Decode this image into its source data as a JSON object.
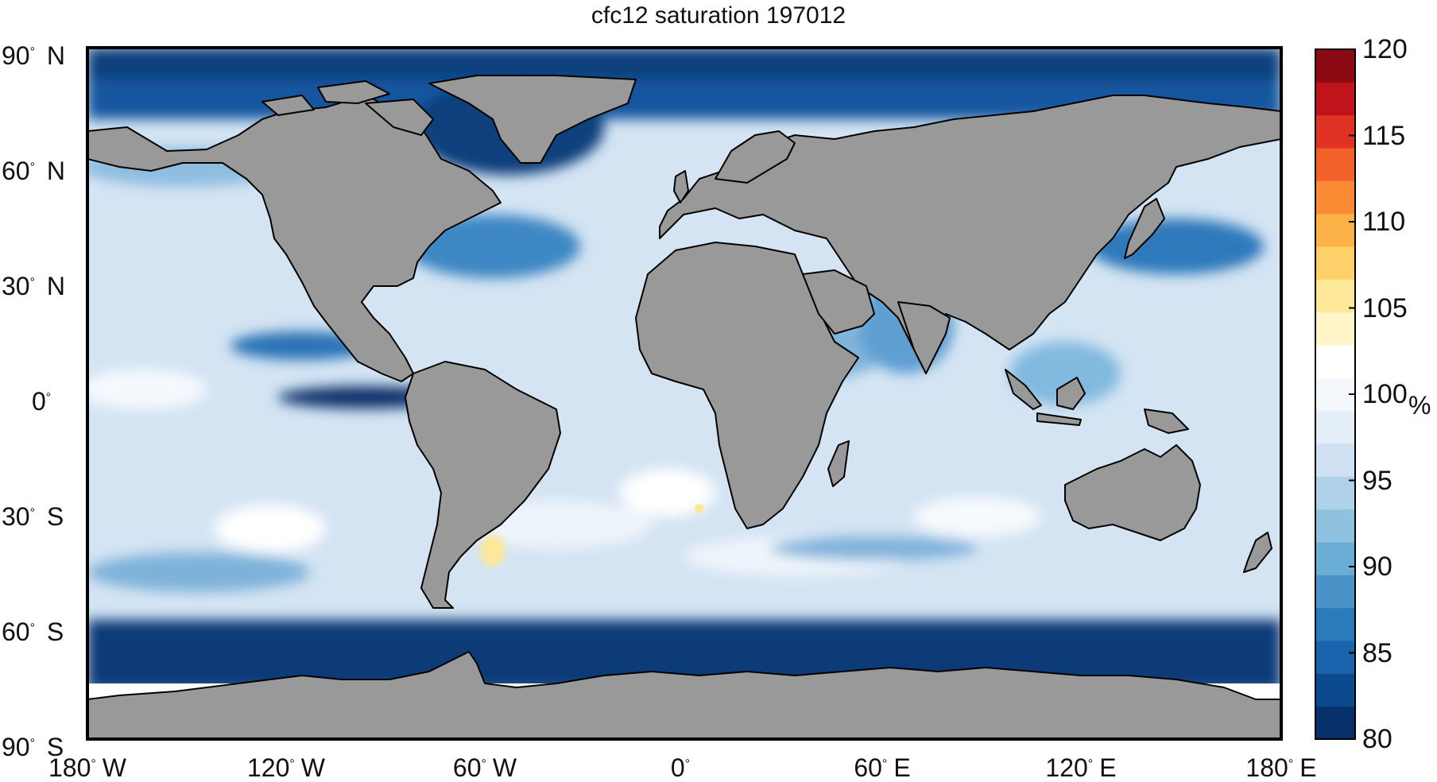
{
  "title": "cfc12 saturation 197012",
  "axes": {
    "lat_labels": [
      {
        "deg": "90",
        "hemi": "N"
      },
      {
        "deg": "60",
        "hemi": "N"
      },
      {
        "deg": "30",
        "hemi": "N"
      },
      {
        "deg": "0",
        "hemi": ""
      },
      {
        "deg": "30",
        "hemi": "S"
      },
      {
        "deg": "60",
        "hemi": "S"
      },
      {
        "deg": "90",
        "hemi": "S"
      }
    ],
    "lon_labels": [
      {
        "deg": "180",
        "hemi": "W"
      },
      {
        "deg": "120",
        "hemi": "W"
      },
      {
        "deg": "60",
        "hemi": "W"
      },
      {
        "deg": "0",
        "hemi": ""
      },
      {
        "deg": "60",
        "hemi": "E"
      },
      {
        "deg": "120",
        "hemi": "E"
      },
      {
        "deg": "180",
        "hemi": "E"
      }
    ]
  },
  "colorbar": {
    "ticks": [
      "120",
      "115",
      "110",
      "105",
      "100",
      "95",
      "90",
      "85",
      "80"
    ],
    "unit": "%",
    "range": [
      80,
      120
    ],
    "colors": [
      "#08306b",
      "#0b4a8f",
      "#1964ad",
      "#2b7bba",
      "#4a93c9",
      "#6aaed6",
      "#8fc2de",
      "#b0d2e8",
      "#cfe1f2",
      "#e3eef8",
      "#f4f8fc",
      "#ffffff",
      "#fff5c8",
      "#fde89a",
      "#fdd06a",
      "#fdb248",
      "#fb8a34",
      "#f2612a",
      "#df3222",
      "#c0141c",
      "#8b0a14"
    ]
  },
  "map": {
    "land_color": "#999999",
    "ocean_base": "#d4e4f3"
  }
}
